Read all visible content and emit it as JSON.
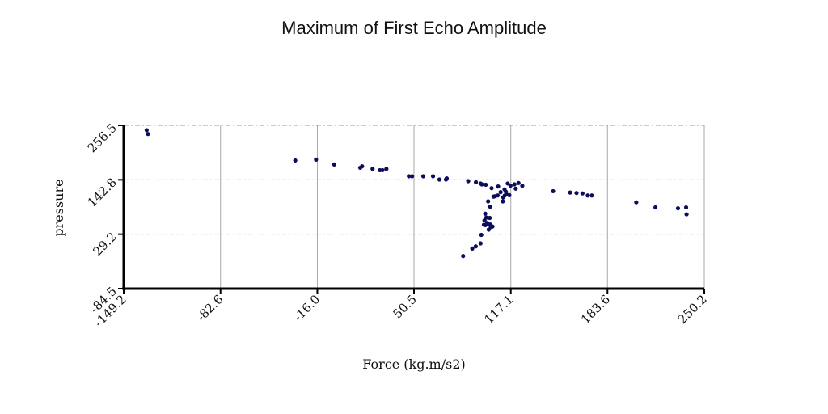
{
  "chart_data": {
    "type": "scatter",
    "title": "Maximum of First Echo Amplitude",
    "xlabel": "Force (kg.m/s2)",
    "ylabel": "pressure",
    "xlim": [
      -149.2,
      250.2
    ],
    "ylim": [
      -84.5,
      256.5
    ],
    "xticks": [
      "-149.2",
      "-82.6",
      "-16.0",
      "50.5",
      "117.1",
      "183.6",
      "250.2"
    ],
    "yticks": [
      "-84.5",
      "29.2",
      "142.8",
      "256.5"
    ],
    "grid": true,
    "colors": {
      "points": "#0d0d5e",
      "grid": "#999999",
      "axis": "#000000"
    },
    "points": [
      [
        -133.4,
        246.5
      ],
      [
        -132.5,
        238.5
      ],
      [
        -31.2,
        183.2
      ],
      [
        -16.9,
        185.0
      ],
      [
        -4.4,
        174.8
      ],
      [
        13.5,
        168.0
      ],
      [
        14.8,
        171.0
      ],
      [
        22.0,
        165.6
      ],
      [
        27.0,
        162.9
      ],
      [
        28.8,
        162.9
      ],
      [
        31.5,
        165.6
      ],
      [
        47.0,
        150.2
      ],
      [
        49.2,
        150.2
      ],
      [
        56.9,
        150.2
      ],
      [
        63.6,
        150.2
      ],
      [
        68.0,
        143.4
      ],
      [
        72.5,
        143.4
      ],
      [
        73.0,
        145.7
      ],
      [
        87.8,
        140.0
      ],
      [
        93.1,
        137.8
      ],
      [
        96.3,
        135.1
      ],
      [
        97.2,
        133.3
      ],
      [
        99.9,
        132.5
      ],
      [
        103.9,
        125.3
      ],
      [
        108.4,
        128.8
      ],
      [
        110.1,
        117.0
      ],
      [
        112.8,
        122.8
      ],
      [
        113.7,
        117.8
      ],
      [
        115.0,
        135.1
      ],
      [
        116.9,
        130.6
      ],
      [
        119.6,
        133.3
      ],
      [
        120.5,
        124.3
      ],
      [
        122.4,
        136.1
      ],
      [
        125.0,
        130.2
      ],
      [
        113.0,
        110.2
      ],
      [
        114.1,
        112.7
      ],
      [
        108.1,
        110.2
      ],
      [
        106.3,
        108.5
      ],
      [
        105.2,
        107.7
      ],
      [
        111.9,
        106.2
      ],
      [
        116.1,
        110.7
      ],
      [
        111.6,
        97.8
      ],
      [
        101.5,
        97.8
      ],
      [
        102.9,
        86.5
      ],
      [
        99.5,
        72.1
      ],
      [
        102.6,
        63.2
      ],
      [
        100.3,
        63.8
      ],
      [
        99.0,
        58.0
      ],
      [
        99.6,
        48.2
      ],
      [
        100.9,
        52.7
      ],
      [
        98.6,
        49.0
      ],
      [
        100.8,
        50.0
      ],
      [
        102.9,
        49.5
      ],
      [
        103.4,
        44.2
      ],
      [
        104.5,
        45.3
      ],
      [
        101.9,
        38.7
      ],
      [
        96.8,
        27.8
      ],
      [
        96.3,
        10.0
      ],
      [
        93.0,
        3.8
      ],
      [
        90.6,
        -0.7
      ],
      [
        84.3,
        -16.3
      ],
      [
        146.2,
        119.0
      ],
      [
        157.9,
        116.2
      ],
      [
        162.3,
        115.2
      ],
      [
        166.4,
        114.4
      ],
      [
        170.0,
        110.0
      ],
      [
        172.8,
        110.0
      ],
      [
        203.4,
        95.8
      ],
      [
        216.6,
        85.1
      ],
      [
        232.1,
        83.4
      ],
      [
        237.7,
        85.1
      ],
      [
        238.0,
        70.7
      ]
    ]
  }
}
